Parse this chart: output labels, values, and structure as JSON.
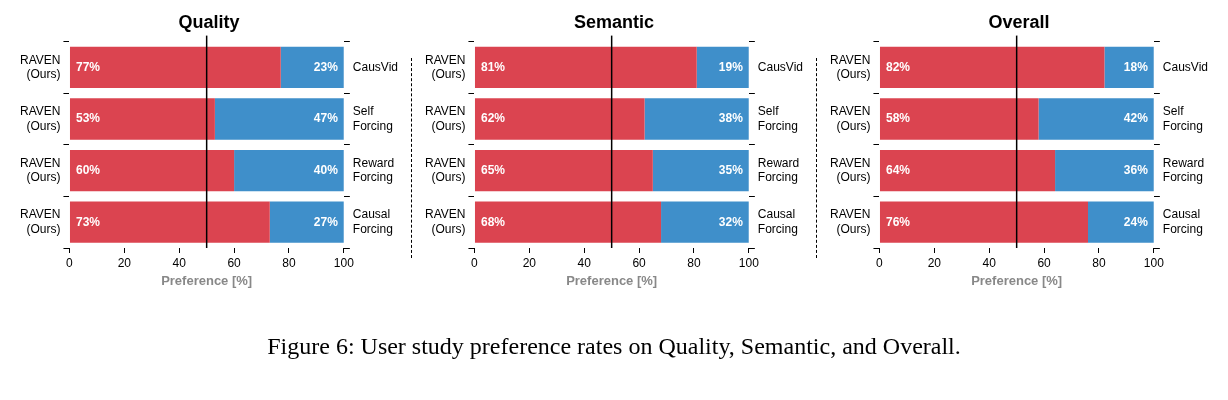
{
  "chart_data": [
    {
      "type": "bar",
      "orientation": "horizontal",
      "stacked": true,
      "title": "Quality",
      "xlabel": "Preference [%]",
      "categories": [
        "RAVEN (Ours)",
        "RAVEN (Ours)",
        "RAVEN (Ours)",
        "RAVEN (Ours)"
      ],
      "y2_categories": [
        "CausVid",
        "Self Forcing",
        "Reward Forcing",
        "Causal Forcing"
      ],
      "xlim": [
        0,
        100
      ],
      "xticks": [
        0,
        20,
        40,
        60,
        80,
        100
      ],
      "grid": false,
      "legend": false,
      "series": [
        {
          "color": "#db4450",
          "values": [
            77,
            53,
            60,
            73
          ],
          "value_labels": [
            "77%",
            "53%",
            "60%",
            "73%"
          ]
        },
        {
          "color": "#3f8fca",
          "values": [
            23,
            47,
            40,
            27
          ],
          "value_labels": [
            "23%",
            "47%",
            "40%",
            "27%"
          ]
        }
      ],
      "ref_lines": [
        {
          "axis": "x",
          "value": 50,
          "color": "#000000"
        }
      ],
      "annotations": [
        "Figure 6: User study preference rates on Quality, Semantic, and Overall."
      ]
    },
    {
      "type": "bar",
      "orientation": "horizontal",
      "stacked": true,
      "title": "Semantic",
      "xlabel": "Preference [%]",
      "categories": [
        "RAVEN (Ours)",
        "RAVEN (Ours)",
        "RAVEN (Ours)",
        "RAVEN (Ours)"
      ],
      "y2_categories": [
        "CausVid",
        "Self Forcing",
        "Reward Forcing",
        "Causal Forcing"
      ],
      "xlim": [
        0,
        100
      ],
      "xticks": [
        0,
        20,
        40,
        60,
        80,
        100
      ],
      "grid": false,
      "legend": false,
      "series": [
        {
          "color": "#db4450",
          "values": [
            81,
            62,
            65,
            68
          ],
          "value_labels": [
            "81%",
            "62%",
            "65%",
            "68%"
          ]
        },
        {
          "color": "#3f8fca",
          "values": [
            19,
            38,
            35,
            32
          ],
          "value_labels": [
            "19%",
            "38%",
            "35%",
            "32%"
          ]
        }
      ],
      "ref_lines": [
        {
          "axis": "x",
          "value": 50,
          "color": "#000000"
        }
      ]
    },
    {
      "type": "bar",
      "orientation": "horizontal",
      "stacked": true,
      "title": "Overall",
      "xlabel": "Preference [%]",
      "categories": [
        "RAVEN (Ours)",
        "RAVEN (Ours)",
        "RAVEN (Ours)",
        "RAVEN (Ours)"
      ],
      "y2_categories": [
        "CausVid",
        "Self Forcing",
        "Reward Forcing",
        "Causal Forcing"
      ],
      "xlim": [
        0,
        100
      ],
      "xticks": [
        0,
        20,
        40,
        60,
        80,
        100
      ],
      "grid": false,
      "legend": false,
      "series": [
        {
          "color": "#db4450",
          "values": [
            82,
            58,
            64,
            76
          ],
          "value_labels": [
            "82%",
            "58%",
            "64%",
            "76%"
          ]
        },
        {
          "color": "#3f8fca",
          "values": [
            18,
            42,
            36,
            24
          ],
          "value_labels": [
            "18%",
            "42%",
            "36%",
            "24%"
          ]
        }
      ],
      "ref_lines": [
        {
          "axis": "x",
          "value": 50,
          "color": "#000000"
        }
      ]
    }
  ]
}
